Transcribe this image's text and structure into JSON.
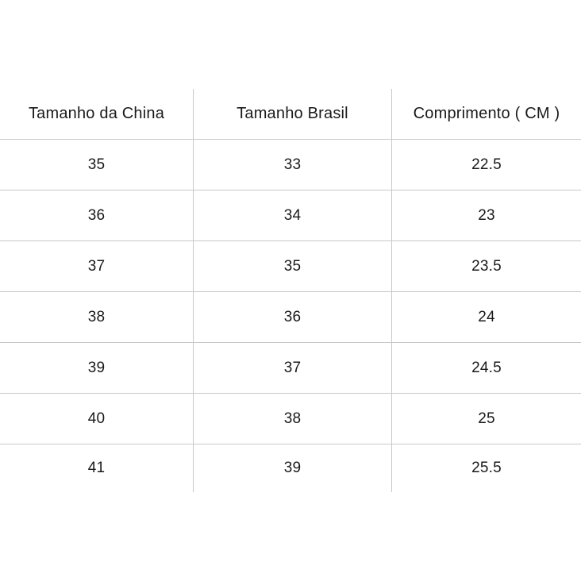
{
  "colors": {
    "border": "#c8c8cc",
    "text": "#1a1a1a",
    "background": "#ffffff"
  },
  "chart_data": {
    "type": "table",
    "title": "",
    "columns": [
      "Tamanho da China",
      "Tamanho Brasil",
      "Comprimento ( CM )"
    ],
    "rows": [
      [
        "35",
        "33",
        "22.5"
      ],
      [
        "36",
        "34",
        "23"
      ],
      [
        "37",
        "35",
        "23.5"
      ],
      [
        "38",
        "36",
        "24"
      ],
      [
        "39",
        "37",
        "24.5"
      ],
      [
        "40",
        "38",
        "25"
      ],
      [
        "41",
        "39",
        "25.5"
      ]
    ]
  }
}
